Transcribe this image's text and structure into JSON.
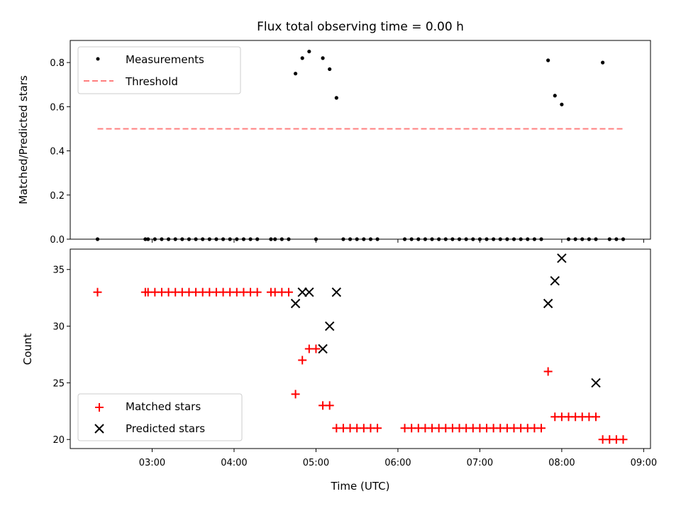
{
  "title": "Flux total observing time = 0.00 h",
  "chart_data": [
    {
      "type": "scatter",
      "ylabel": "Matched/Predicted stars",
      "xlim": [
        "02:00",
        "09:05"
      ],
      "ylim": [
        0,
        0.9
      ],
      "yticks": [
        "0.0",
        "0.2",
        "0.4",
        "0.6",
        "0.8"
      ],
      "legend": {
        "placement": "top-left",
        "entries": [
          "Measurements",
          "Threshold"
        ]
      },
      "series": [
        {
          "name": "Measurements",
          "color": "#000000",
          "marker": "dot",
          "x": [
            "02:20",
            "02:55",
            "02:57",
            "03:02",
            "03:07",
            "03:12",
            "03:17",
            "03:22",
            "03:27",
            "03:32",
            "03:37",
            "03:42",
            "03:47",
            "03:52",
            "03:57",
            "04:02",
            "04:07",
            "04:12",
            "04:17",
            "04:27",
            "04:30",
            "04:35",
            "04:40",
            "04:45",
            "04:50",
            "04:55",
            "05:00",
            "05:05",
            "05:10",
            "05:15",
            "05:20",
            "05:25",
            "05:30",
            "05:35",
            "05:40",
            "05:45",
            "06:05",
            "06:10",
            "06:15",
            "06:20",
            "06:25",
            "06:30",
            "06:35",
            "06:40",
            "06:45",
            "06:50",
            "06:55",
            "07:00",
            "07:05",
            "07:10",
            "07:15",
            "07:20",
            "07:25",
            "07:30",
            "07:35",
            "07:40",
            "07:45",
            "07:50",
            "07:55",
            "08:00",
            "08:05",
            "08:10",
            "08:15",
            "08:20",
            "08:25",
            "08:30",
            "08:35",
            "08:40",
            "08:45"
          ],
          "y": [
            0,
            0,
            0,
            0,
            0,
            0,
            0,
            0,
            0,
            0,
            0,
            0,
            0,
            0,
            0,
            0,
            0,
            0,
            0,
            0,
            0,
            0,
            0,
            0.75,
            0.82,
            0.85,
            0,
            0.82,
            0.77,
            0.64,
            0,
            0,
            0,
            0,
            0,
            0,
            0,
            0,
            0,
            0,
            0,
            0,
            0,
            0,
            0,
            0,
            0,
            0,
            0,
            0,
            0,
            0,
            0,
            0,
            0,
            0,
            0,
            0.81,
            0.65,
            0.61,
            0,
            0,
            0,
            0,
            0,
            0.8,
            0,
            0,
            0
          ]
        },
        {
          "name": "Threshold",
          "color": "#ff7f7f",
          "style": "dashed",
          "x": [
            "02:20",
            "08:45"
          ],
          "y": [
            0.5,
            0.5
          ]
        }
      ]
    },
    {
      "type": "scatter",
      "xlabel": "Time (UTC)",
      "ylabel": "Count",
      "xlim": [
        "02:00",
        "09:05"
      ],
      "ylim": [
        19.2,
        36.8
      ],
      "yticks": [
        "20",
        "25",
        "30",
        "35"
      ],
      "xticks": [
        "03:00",
        "04:00",
        "05:00",
        "06:00",
        "07:00",
        "08:00",
        "09:00"
      ],
      "legend": {
        "placement": "bottom-left",
        "entries": [
          "Matched stars",
          "Predicted stars"
        ]
      },
      "series": [
        {
          "name": "Matched stars",
          "color": "#ff0000",
          "marker": "plus",
          "x": [
            "02:20",
            "02:55",
            "02:57",
            "03:02",
            "03:07",
            "03:12",
            "03:17",
            "03:22",
            "03:27",
            "03:32",
            "03:37",
            "03:42",
            "03:47",
            "03:52",
            "03:57",
            "04:02",
            "04:07",
            "04:12",
            "04:17",
            "04:27",
            "04:30",
            "04:35",
            "04:40",
            "04:45",
            "04:50",
            "04:55",
            "05:00",
            "05:05",
            "05:10",
            "05:15",
            "05:20",
            "05:25",
            "05:30",
            "05:35",
            "05:40",
            "05:45",
            "06:05",
            "06:10",
            "06:15",
            "06:20",
            "06:25",
            "06:30",
            "06:35",
            "06:40",
            "06:45",
            "06:50",
            "06:55",
            "07:00",
            "07:05",
            "07:10",
            "07:15",
            "07:20",
            "07:25",
            "07:30",
            "07:35",
            "07:40",
            "07:45",
            "07:50",
            "07:55",
            "08:00",
            "08:05",
            "08:10",
            "08:15",
            "08:20",
            "08:25",
            "08:30",
            "08:35",
            "08:40",
            "08:45"
          ],
          "y": [
            33,
            33,
            33,
            33,
            33,
            33,
            33,
            33,
            33,
            33,
            33,
            33,
            33,
            33,
            33,
            33,
            33,
            33,
            33,
            33,
            33,
            33,
            33,
            24,
            27,
            28,
            28,
            23,
            23,
            21,
            21,
            21,
            21,
            21,
            21,
            21,
            21,
            21,
            21,
            21,
            21,
            21,
            21,
            21,
            21,
            21,
            21,
            21,
            21,
            21,
            21,
            21,
            21,
            21,
            21,
            21,
            21,
            26,
            22,
            22,
            22,
            22,
            22,
            22,
            22,
            20,
            20,
            20,
            20
          ]
        },
        {
          "name": "Predicted stars",
          "color": "#000000",
          "marker": "x",
          "x": [
            "04:45",
            "04:50",
            "04:55",
            "05:05",
            "05:10",
            "05:15",
            "07:50",
            "07:55",
            "08:00",
            "08:25"
          ],
          "y": [
            32,
            33,
            33,
            28,
            30,
            33,
            32,
            34,
            36,
            25
          ]
        }
      ]
    }
  ]
}
